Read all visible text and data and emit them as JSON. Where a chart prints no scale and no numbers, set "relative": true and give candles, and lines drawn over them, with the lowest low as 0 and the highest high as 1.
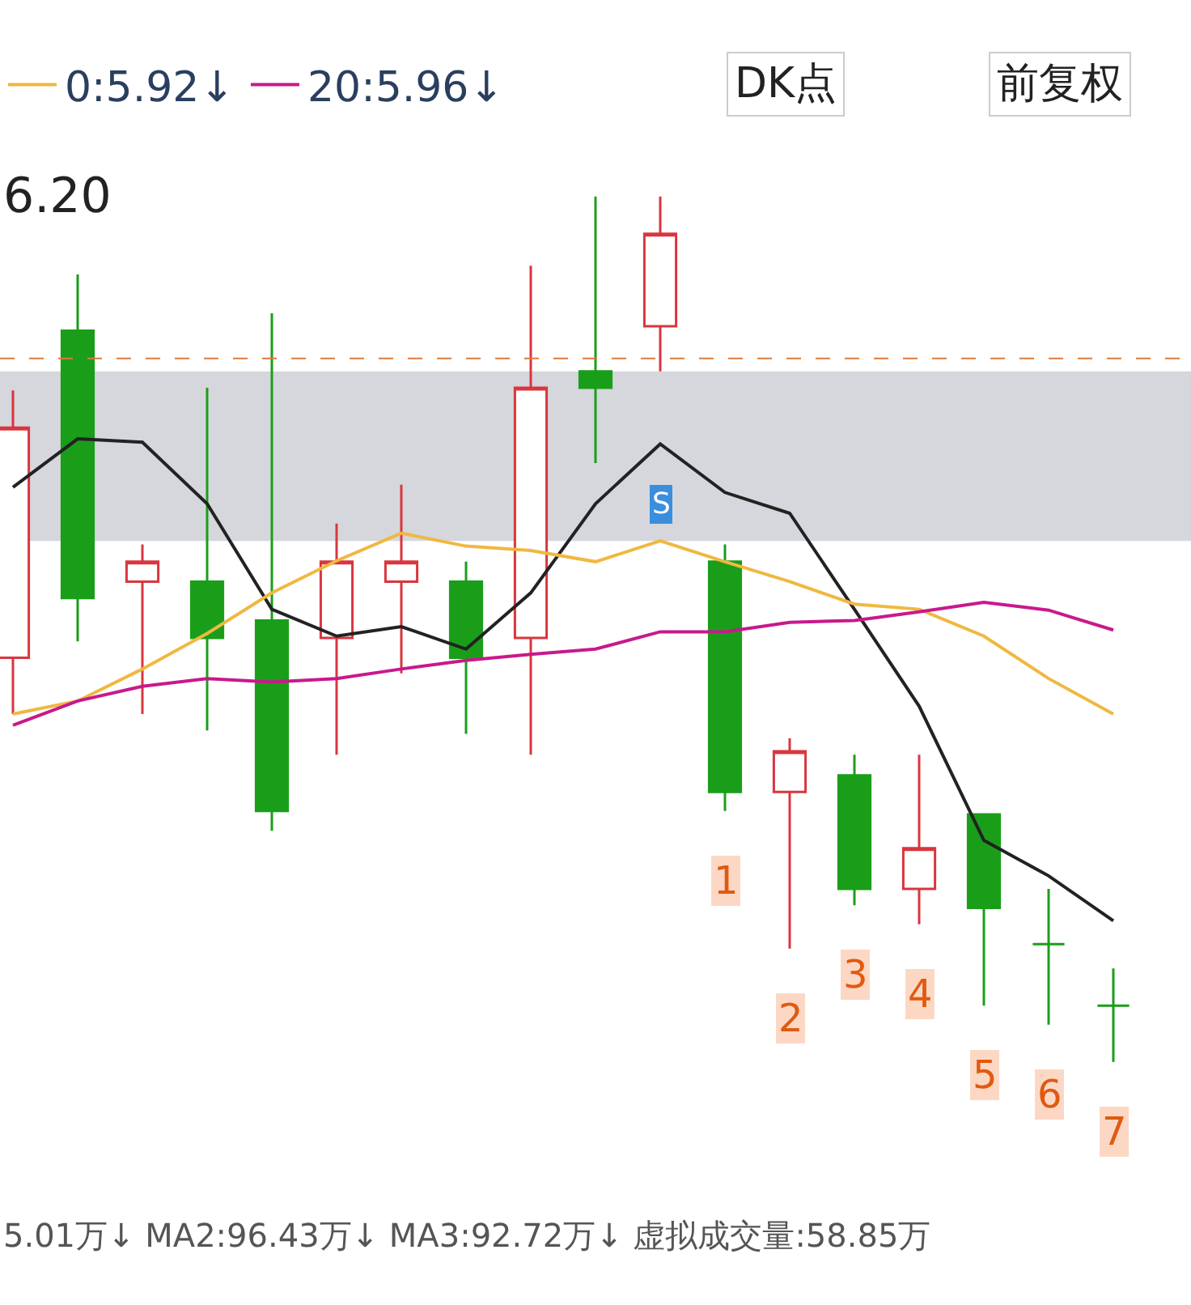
{
  "chart_data": {
    "type": "candlestick",
    "relative": true,
    "categories": [
      null,
      null,
      null,
      null,
      null,
      null,
      null,
      null,
      null,
      null,
      null,
      null,
      null,
      null,
      null,
      null,
      null,
      null
    ],
    "ohlc": [
      [
        0.467,
        0.776,
        0.402,
        0.733
      ],
      [
        0.845,
        0.91,
        0.486,
        0.536
      ],
      [
        0.555,
        0.598,
        0.402,
        0.578
      ],
      [
        0.555,
        0.779,
        0.383,
        0.49
      ],
      [
        0.51,
        0.865,
        0.267,
        0.29
      ],
      [
        0.49,
        0.622,
        0.355,
        0.578
      ],
      [
        0.555,
        0.667,
        0.449,
        0.578
      ],
      [
        0.555,
        0.578,
        0.379,
        0.467
      ],
      [
        0.49,
        0.92,
        0.355,
        0.779
      ],
      [
        0.798,
        1.0,
        0.692,
        0.779
      ],
      [
        0.85,
        1.0,
        0.798,
        0.957
      ],
      [
        0.578,
        0.598,
        0.29,
        0.312
      ],
      [
        0.312,
        0.374,
        0.131,
        0.359
      ],
      [
        0.331,
        0.355,
        0.181,
        0.2
      ],
      [
        0.2,
        0.355,
        0.159,
        0.247
      ],
      [
        0.286,
        0.286,
        0.065,
        0.178
      ],
      [
        0.136,
        0.2,
        0.043,
        0.136
      ],
      [
        0.065,
        0.108,
        0.0,
        0.065
      ]
    ],
    "colors": [
      "#d9363e",
      "#1a9e1a",
      "#d9363e",
      "#1a9e1a",
      "#1a9e1a",
      "#d9363e",
      "#d9363e",
      "#1a9e1a",
      "#d9363e",
      "#1a9e1a",
      "#d9363e",
      "#1a9e1a",
      "#d9363e",
      "#1a9e1a",
      "#d9363e",
      "#1a9e1a",
      "#1a9e1a",
      "#1a9e1a"
    ],
    "series": [
      {
        "type": "line",
        "color": "#222222",
        "values": [
          0.664,
          0.72,
          0.716,
          0.645,
          0.523,
          0.492,
          0.503,
          0.477,
          0.542,
          0.645,
          0.714,
          0.658,
          0.634,
          0.523,
          0.411,
          0.256,
          0.215,
          0.163
        ]
      },
      {
        "type": "line",
        "name": "0:5.92↓",
        "color": "#f0b840",
        "values": [
          0.402,
          0.417,
          0.454,
          0.495,
          0.542,
          0.579,
          0.611,
          0.596,
          0.591,
          0.578,
          0.602,
          0.578,
          0.555,
          0.529,
          0.523,
          0.492,
          0.443,
          0.402
        ]
      },
      {
        "type": "line",
        "name": "20:5.96↓",
        "color": "#c8198c",
        "values": [
          0.389,
          0.417,
          0.434,
          0.443,
          0.439,
          0.443,
          0.454,
          0.464,
          0.471,
          0.477,
          0.497,
          0.497,
          0.508,
          0.51,
          0.52,
          0.531,
          0.522,
          0.499
        ]
      }
    ],
    "ref_lines": [
      {
        "axis": "y",
        "value": 0.813,
        "color": "#e07a3a",
        "line_style": "dashed"
      }
    ],
    "bands": [
      {
        "axis": "y",
        "from": 0.602,
        "to": 0.798,
        "color": "#d5d7dc"
      }
    ],
    "legend": "top left",
    "annotations": [
      "6.20",
      "DK点",
      "前复权",
      "1",
      "2",
      "3",
      "4",
      "5",
      "6",
      "7",
      "S",
      "5.01万↓ MA2:96.43万↓ MA3:92.72万↓ 虚拟成交量:58.85万"
    ]
  }
}
